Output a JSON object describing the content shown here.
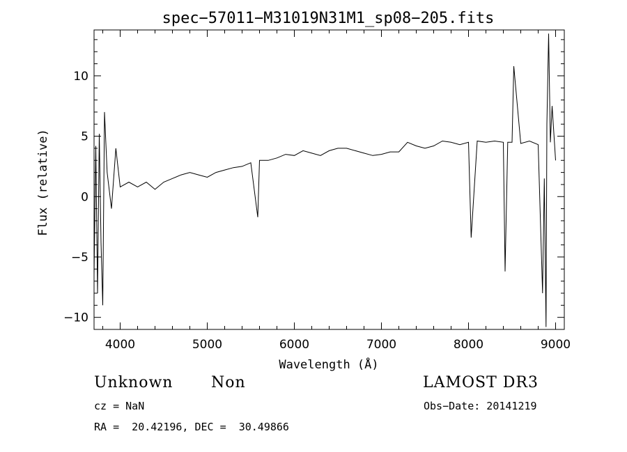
{
  "chart_data": {
    "type": "line",
    "title": "spec−57011−M31019N31M1_sp08−205.fits",
    "xlabel": "Wavelength (Å)",
    "ylabel": "Flux (relative)",
    "xlim": [
      3700,
      9100
    ],
    "ylim": [
      -11,
      13.8
    ],
    "xticks": [
      4000,
      5000,
      6000,
      7000,
      8000,
      9000
    ],
    "yticks": [
      -10,
      -5,
      0,
      5,
      10
    ],
    "ytick_labels": [
      "−10",
      "−5",
      "0",
      "5",
      "10"
    ],
    "grid": false,
    "series": [
      {
        "x": [
          3700,
          3720,
          3740,
          3760,
          3780,
          3800,
          3820,
          3850,
          3900,
          3950,
          4000,
          4100,
          4200,
          4300,
          4400,
          4500,
          4600,
          4700,
          4800,
          4900,
          5000,
          5100,
          5200,
          5300,
          5400,
          5500,
          5580,
          5600,
          5700,
          5800,
          5900,
          6000,
          6100,
          6200,
          6300,
          6400,
          6500,
          6600,
          6700,
          6800,
          6900,
          7000,
          7100,
          7200,
          7300,
          7400,
          7500,
          7600,
          7700,
          7800,
          7900,
          8000,
          8030,
          8100,
          8200,
          8300,
          8400,
          8420,
          8450,
          8500,
          8520,
          8600,
          8700,
          8800,
          8850,
          8870,
          8890,
          8900,
          8920,
          8940,
          8960,
          9000
        ],
        "y": [
          -6.5,
          4.2,
          -8.0,
          5.2,
          -3.8,
          -9.0,
          7.0,
          2.0,
          -1.0,
          4.0,
          0.8,
          1.2,
          0.8,
          1.2,
          0.6,
          1.2,
          1.5,
          1.8,
          2.0,
          1.8,
          1.6,
          2.0,
          2.2,
          2.4,
          2.5,
          2.8,
          -1.7,
          3.0,
          3.0,
          3.2,
          3.5,
          3.4,
          3.8,
          3.6,
          3.4,
          3.8,
          4.0,
          4.0,
          3.8,
          3.6,
          3.4,
          3.5,
          3.7,
          3.7,
          4.5,
          4.2,
          4.0,
          4.2,
          4.6,
          4.5,
          4.3,
          4.5,
          -3.4,
          4.6,
          4.5,
          4.6,
          4.5,
          -6.2,
          4.5,
          4.5,
          10.8,
          4.4,
          4.6,
          4.3,
          -8.0,
          1.5,
          -10.8,
          6.0,
          13.5,
          4.5,
          7.5,
          3.0
        ]
      }
    ]
  },
  "info": {
    "object_class": "Unknown",
    "object_subclass": "Non",
    "survey": "LAMOST DR3",
    "cz": "cz = NaN",
    "obs_date": "Obs−Date: 20141219",
    "coords": "RA =  20.42196, DEC =  30.49866"
  }
}
